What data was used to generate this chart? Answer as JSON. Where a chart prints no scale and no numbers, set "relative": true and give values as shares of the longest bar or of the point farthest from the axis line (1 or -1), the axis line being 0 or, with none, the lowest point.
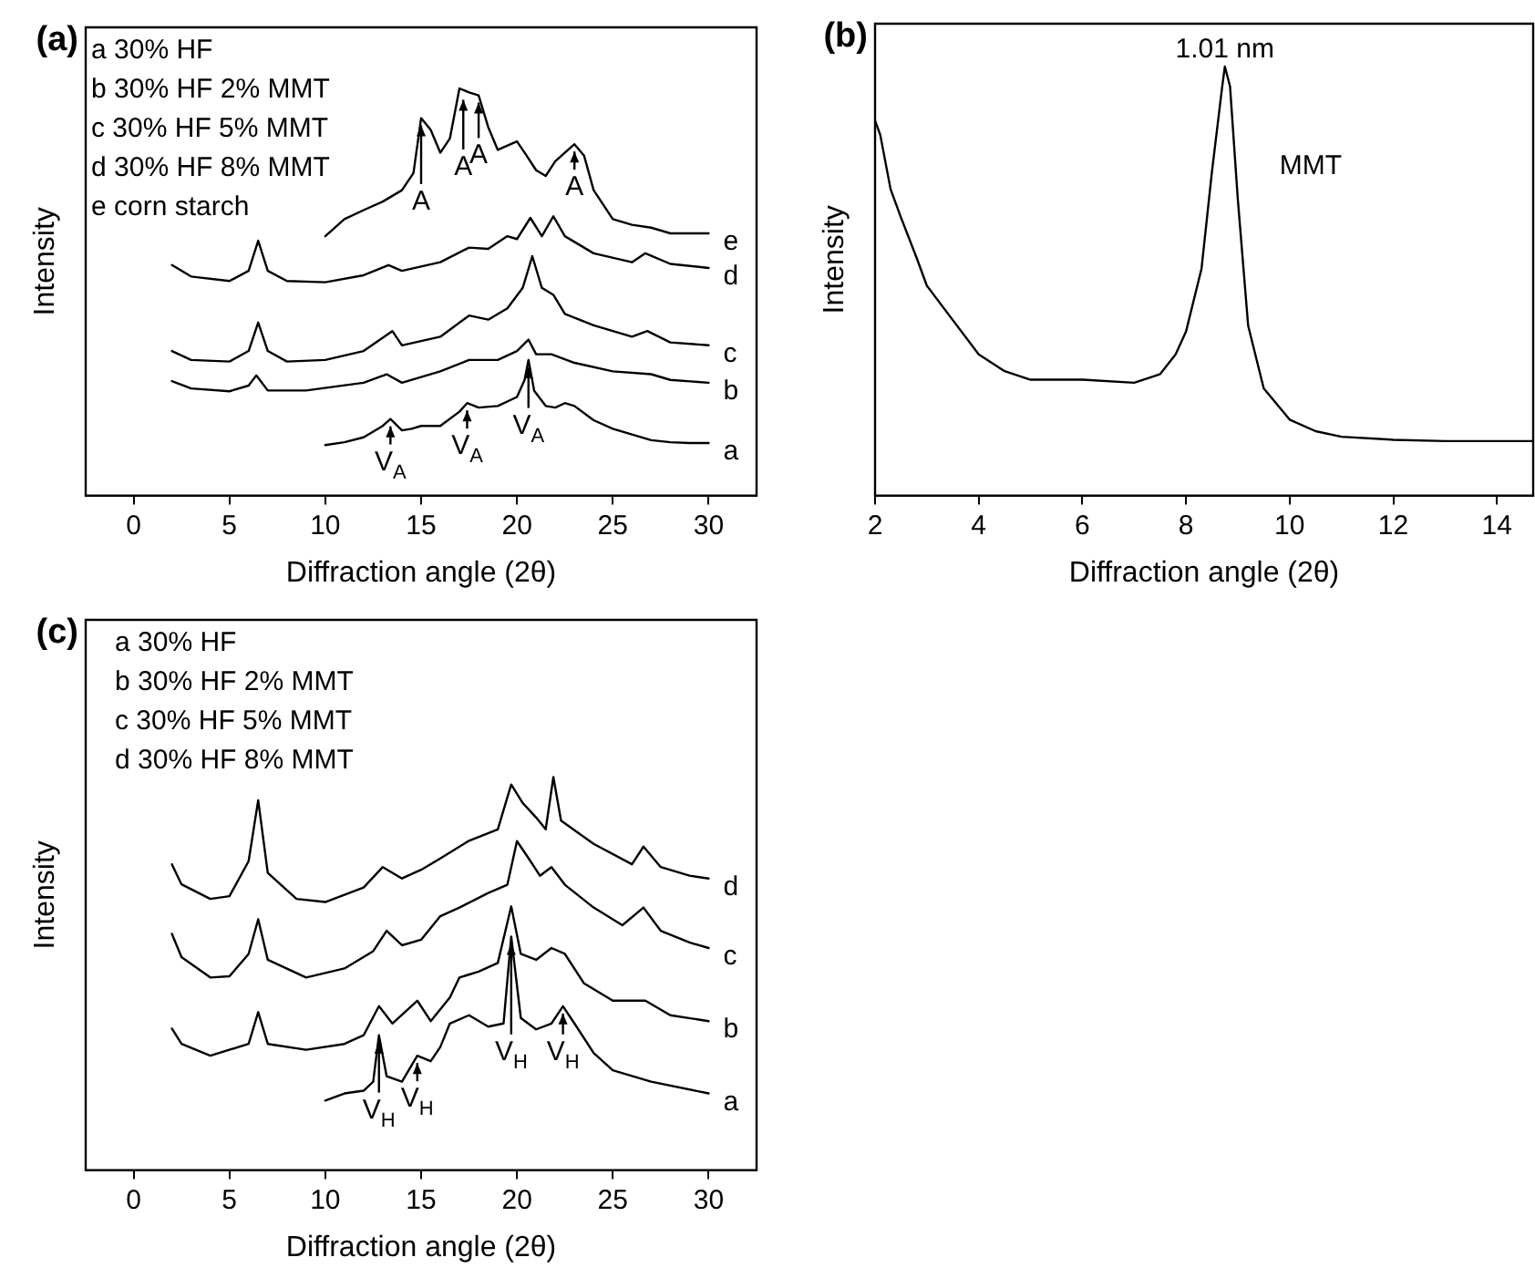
{
  "chart_data": [
    {
      "type": "line",
      "title": "(a)",
      "xlabel": "Diffraction angle (2θ)",
      "ylabel": "Intensity",
      "relative": true,
      "xlim": [
        -2.5,
        32.5
      ],
      "xticks": [
        0,
        5,
        10,
        15,
        20,
        25,
        30
      ],
      "annotations": [
        "a 30% HF",
        "b 30% HF 2% MMT",
        "c 30% HF 5% MMT",
        "d 30% HF 8% MMT",
        "e corn starch",
        {
          "text": "A",
          "x": 15,
          "y": 0.927
        },
        {
          "text": "A",
          "x": 17.2,
          "y": 0.99
        },
        {
          "text": "A",
          "x": 18,
          "y": 0.983
        },
        {
          "text": "A",
          "x": 23,
          "y": 0.863
        },
        {
          "text": "V$_{A}$",
          "x": 13.4,
          "y": 0.188
        },
        {
          "text": "V$_{A}$",
          "x": 17.4,
          "y": 0.227
        },
        {
          "text": "V$_{A}$",
          "x": 20.6,
          "y": 0.333
        }
      ],
      "series": [
        {
          "name": "a",
          "color": "#000000",
          "x": [
            10,
            11,
            12,
            13,
            13.4,
            14,
            14.5,
            15,
            16,
            17,
            17.4,
            18,
            19,
            20,
            20.4,
            20.6,
            20.9,
            21.5,
            22,
            22.5,
            23,
            24,
            25,
            26,
            27,
            28,
            29,
            30
          ],
          "values": [
            0.124,
            0.131,
            0.143,
            0.171,
            0.188,
            0.16,
            0.164,
            0.171,
            0.171,
            0.206,
            0.227,
            0.216,
            0.22,
            0.242,
            0.284,
            0.333,
            0.257,
            0.22,
            0.216,
            0.227,
            0.22,
            0.185,
            0.164,
            0.15,
            0.136,
            0.131,
            0.129,
            0.129
          ]
        },
        {
          "name": "b",
          "color": "#000000",
          "x": [
            2,
            3,
            5,
            6,
            6.4,
            7,
            9,
            12,
            13.2,
            14,
            16,
            17.5,
            19,
            20,
            20.6,
            21,
            21.8,
            23,
            25,
            27,
            28,
            30
          ],
          "values": [
            0.281,
            0.263,
            0.256,
            0.27,
            0.295,
            0.258,
            0.258,
            0.277,
            0.298,
            0.277,
            0.305,
            0.333,
            0.333,
            0.355,
            0.383,
            0.347,
            0.347,
            0.326,
            0.305,
            0.298,
            0.284,
            0.277
          ]
        },
        {
          "name": "c",
          "color": "#000000",
          "x": [
            2,
            3,
            5,
            6,
            6.5,
            7,
            8,
            10,
            12,
            13.5,
            14,
            16,
            17.5,
            18.5,
            19.5,
            20.3,
            20.8,
            21.3,
            21.9,
            22.5,
            24,
            26,
            26.8,
            28,
            30
          ],
          "values": [
            0.355,
            0.333,
            0.329,
            0.355,
            0.425,
            0.355,
            0.329,
            0.333,
            0.355,
            0.404,
            0.369,
            0.39,
            0.442,
            0.432,
            0.46,
            0.51,
            0.588,
            0.51,
            0.493,
            0.446,
            0.418,
            0.39,
            0.404,
            0.376,
            0.369
          ]
        },
        {
          "name": "d",
          "color": "#000000",
          "x": [
            2,
            3,
            5,
            6,
            6.5,
            7,
            8,
            10,
            12,
            13.3,
            14,
            16,
            17.5,
            18.5,
            19.5,
            20,
            20.7,
            21.3,
            21.9,
            22.5,
            24,
            26,
            26.7,
            28,
            30
          ],
          "values": [
            0.566,
            0.538,
            0.527,
            0.552,
            0.626,
            0.552,
            0.527,
            0.524,
            0.541,
            0.566,
            0.552,
            0.573,
            0.609,
            0.606,
            0.637,
            0.63,
            0.682,
            0.637,
            0.686,
            0.637,
            0.595,
            0.573,
            0.595,
            0.569,
            0.559
          ]
        },
        {
          "name": "e",
          "color": "#000000",
          "x": [
            10,
            11,
            12,
            13,
            14,
            14.6,
            15,
            15.5,
            16,
            16.5,
            17,
            17.5,
            18,
            18.5,
            19,
            20,
            20.5,
            21,
            21.5,
            22,
            23,
            23.5,
            24,
            25,
            26,
            27,
            28,
            30
          ],
          "values": [
            0.637,
            0.679,
            0.701,
            0.722,
            0.75,
            0.792,
            0.927,
            0.898,
            0.842,
            0.877,
            1.0,
            0.99,
            0.983,
            0.905,
            0.849,
            0.87,
            0.835,
            0.799,
            0.785,
            0.821,
            0.863,
            0.835,
            0.75,
            0.679,
            0.665,
            0.658,
            0.644,
            0.644
          ]
        }
      ]
    },
    {
      "type": "line",
      "title": "(b)",
      "xlabel": "Diffraction angle (2θ)",
      "ylabel": "Intensity",
      "relative": true,
      "xlim": [
        2,
        14.7
      ],
      "xticks": [
        2,
        4,
        6,
        8,
        10,
        12,
        14
      ],
      "annotations": [
        {
          "text": "1.01 nm",
          "x": 8.75,
          "y": 1.0
        }
      ],
      "series": [
        {
          "name": "MMT",
          "color": "#000000",
          "x": [
            2,
            2.1,
            2.3,
            2.5,
            2.8,
            3,
            3.5,
            4,
            4.5,
            5,
            6,
            7,
            7.5,
            7.8,
            8,
            8.3,
            8.5,
            8.7,
            8.75,
            8.85,
            9,
            9.2,
            9.5,
            10,
            10.5,
            11,
            12,
            13,
            14,
            14.7
          ],
          "values": [
            0.874,
            0.841,
            0.714,
            0.648,
            0.555,
            0.489,
            0.409,
            0.329,
            0.29,
            0.27,
            0.27,
            0.263,
            0.283,
            0.329,
            0.382,
            0.529,
            0.754,
            0.954,
            1.0,
            0.954,
            0.691,
            0.396,
            0.25,
            0.177,
            0.15,
            0.137,
            0.13,
            0.127,
            0.127,
            0.127
          ]
        }
      ]
    },
    {
      "type": "line",
      "title": "(c)",
      "xlabel": "Diffraction angle (2θ)",
      "ylabel": "Intensity",
      "relative": true,
      "xlim": [
        -2.5,
        32.5
      ],
      "xticks": [
        0,
        5,
        10,
        15,
        20,
        25,
        30
      ],
      "annotations": [
        "a 30% HF",
        "b 30% HF 2% MMT",
        "c 30% HF 5% MMT",
        "d 30% HF 8% MMT",
        {
          "text": "V$_{H}$",
          "x": 12.8,
          "y": 0.343
        },
        {
          "text": "V$_{H}$",
          "x": 14.8,
          "y": 0.291
        },
        {
          "text": "V$_{H}$",
          "x": 19.7,
          "y": 0.594
        },
        {
          "text": "V$_{H}$",
          "x": 22.4,
          "y": 0.417
        }
      ],
      "series": [
        {
          "name": "a",
          "color": "#000000",
          "x": [
            10,
            11,
            12,
            12.5,
            12.8,
            13.2,
            14,
            14.8,
            15.5,
            16,
            16.5,
            17.5,
            18.5,
            19.3,
            19.7,
            20.2,
            21,
            21.8,
            22.4,
            23,
            24,
            25,
            27,
            30
          ],
          "values": [
            0.177,
            0.195,
            0.202,
            0.225,
            0.343,
            0.239,
            0.225,
            0.291,
            0.277,
            0.313,
            0.373,
            0.394,
            0.365,
            0.373,
            0.594,
            0.387,
            0.358,
            0.373,
            0.417,
            0.373,
            0.298,
            0.254,
            0.225,
            0.195
          ]
        },
        {
          "name": "b",
          "color": "#000000",
          "x": [
            2,
            2.5,
            4,
            6,
            6.5,
            7,
            9,
            11,
            12,
            12.8,
            13.5,
            14.8,
            15.5,
            16.5,
            17,
            18,
            19,
            19.7,
            20.2,
            21,
            21.8,
            22.5,
            23.5,
            25,
            26.7,
            28,
            30
          ],
          "values": [
            0.36,
            0.321,
            0.291,
            0.321,
            0.402,
            0.321,
            0.306,
            0.321,
            0.343,
            0.417,
            0.373,
            0.431,
            0.379,
            0.439,
            0.49,
            0.505,
            0.527,
            0.671,
            0.55,
            0.535,
            0.565,
            0.55,
            0.475,
            0.431,
            0.431,
            0.394,
            0.379
          ]
        },
        {
          "name": "c",
          "color": "#000000",
          "x": [
            2,
            2.5,
            4,
            5,
            6,
            6.5,
            7,
            9,
            11,
            12.5,
            13.2,
            14,
            15,
            16,
            17,
            18.5,
            19.5,
            20,
            20.5,
            21.2,
            21.8,
            22.5,
            24,
            25.5,
            26.6,
            27.5,
            29,
            30
          ],
          "values": [
            0.601,
            0.542,
            0.49,
            0.493,
            0.55,
            0.638,
            0.535,
            0.49,
            0.513,
            0.557,
            0.609,
            0.572,
            0.586,
            0.646,
            0.668,
            0.705,
            0.726,
            0.837,
            0.801,
            0.749,
            0.771,
            0.726,
            0.668,
            0.623,
            0.668,
            0.609,
            0.579,
            0.565
          ]
        },
        {
          "name": "d",
          "color": "#000000",
          "x": [
            2,
            2.5,
            4,
            5,
            6,
            6.5,
            7,
            8.5,
            10,
            12,
            13,
            14,
            15,
            16,
            17.5,
            19,
            19.7,
            20.3,
            21,
            21.5,
            21.9,
            22.3,
            24,
            26,
            26.6,
            27.5,
            29,
            30
          ],
          "values": [
            0.778,
            0.727,
            0.69,
            0.697,
            0.786,
            0.941,
            0.756,
            0.69,
            0.682,
            0.719,
            0.771,
            0.742,
            0.764,
            0.793,
            0.838,
            0.867,
            0.981,
            0.934,
            0.897,
            0.867,
            1.0,
            0.889,
            0.83,
            0.778,
            0.823,
            0.771,
            0.749,
            0.742
          ]
        }
      ]
    }
  ]
}
